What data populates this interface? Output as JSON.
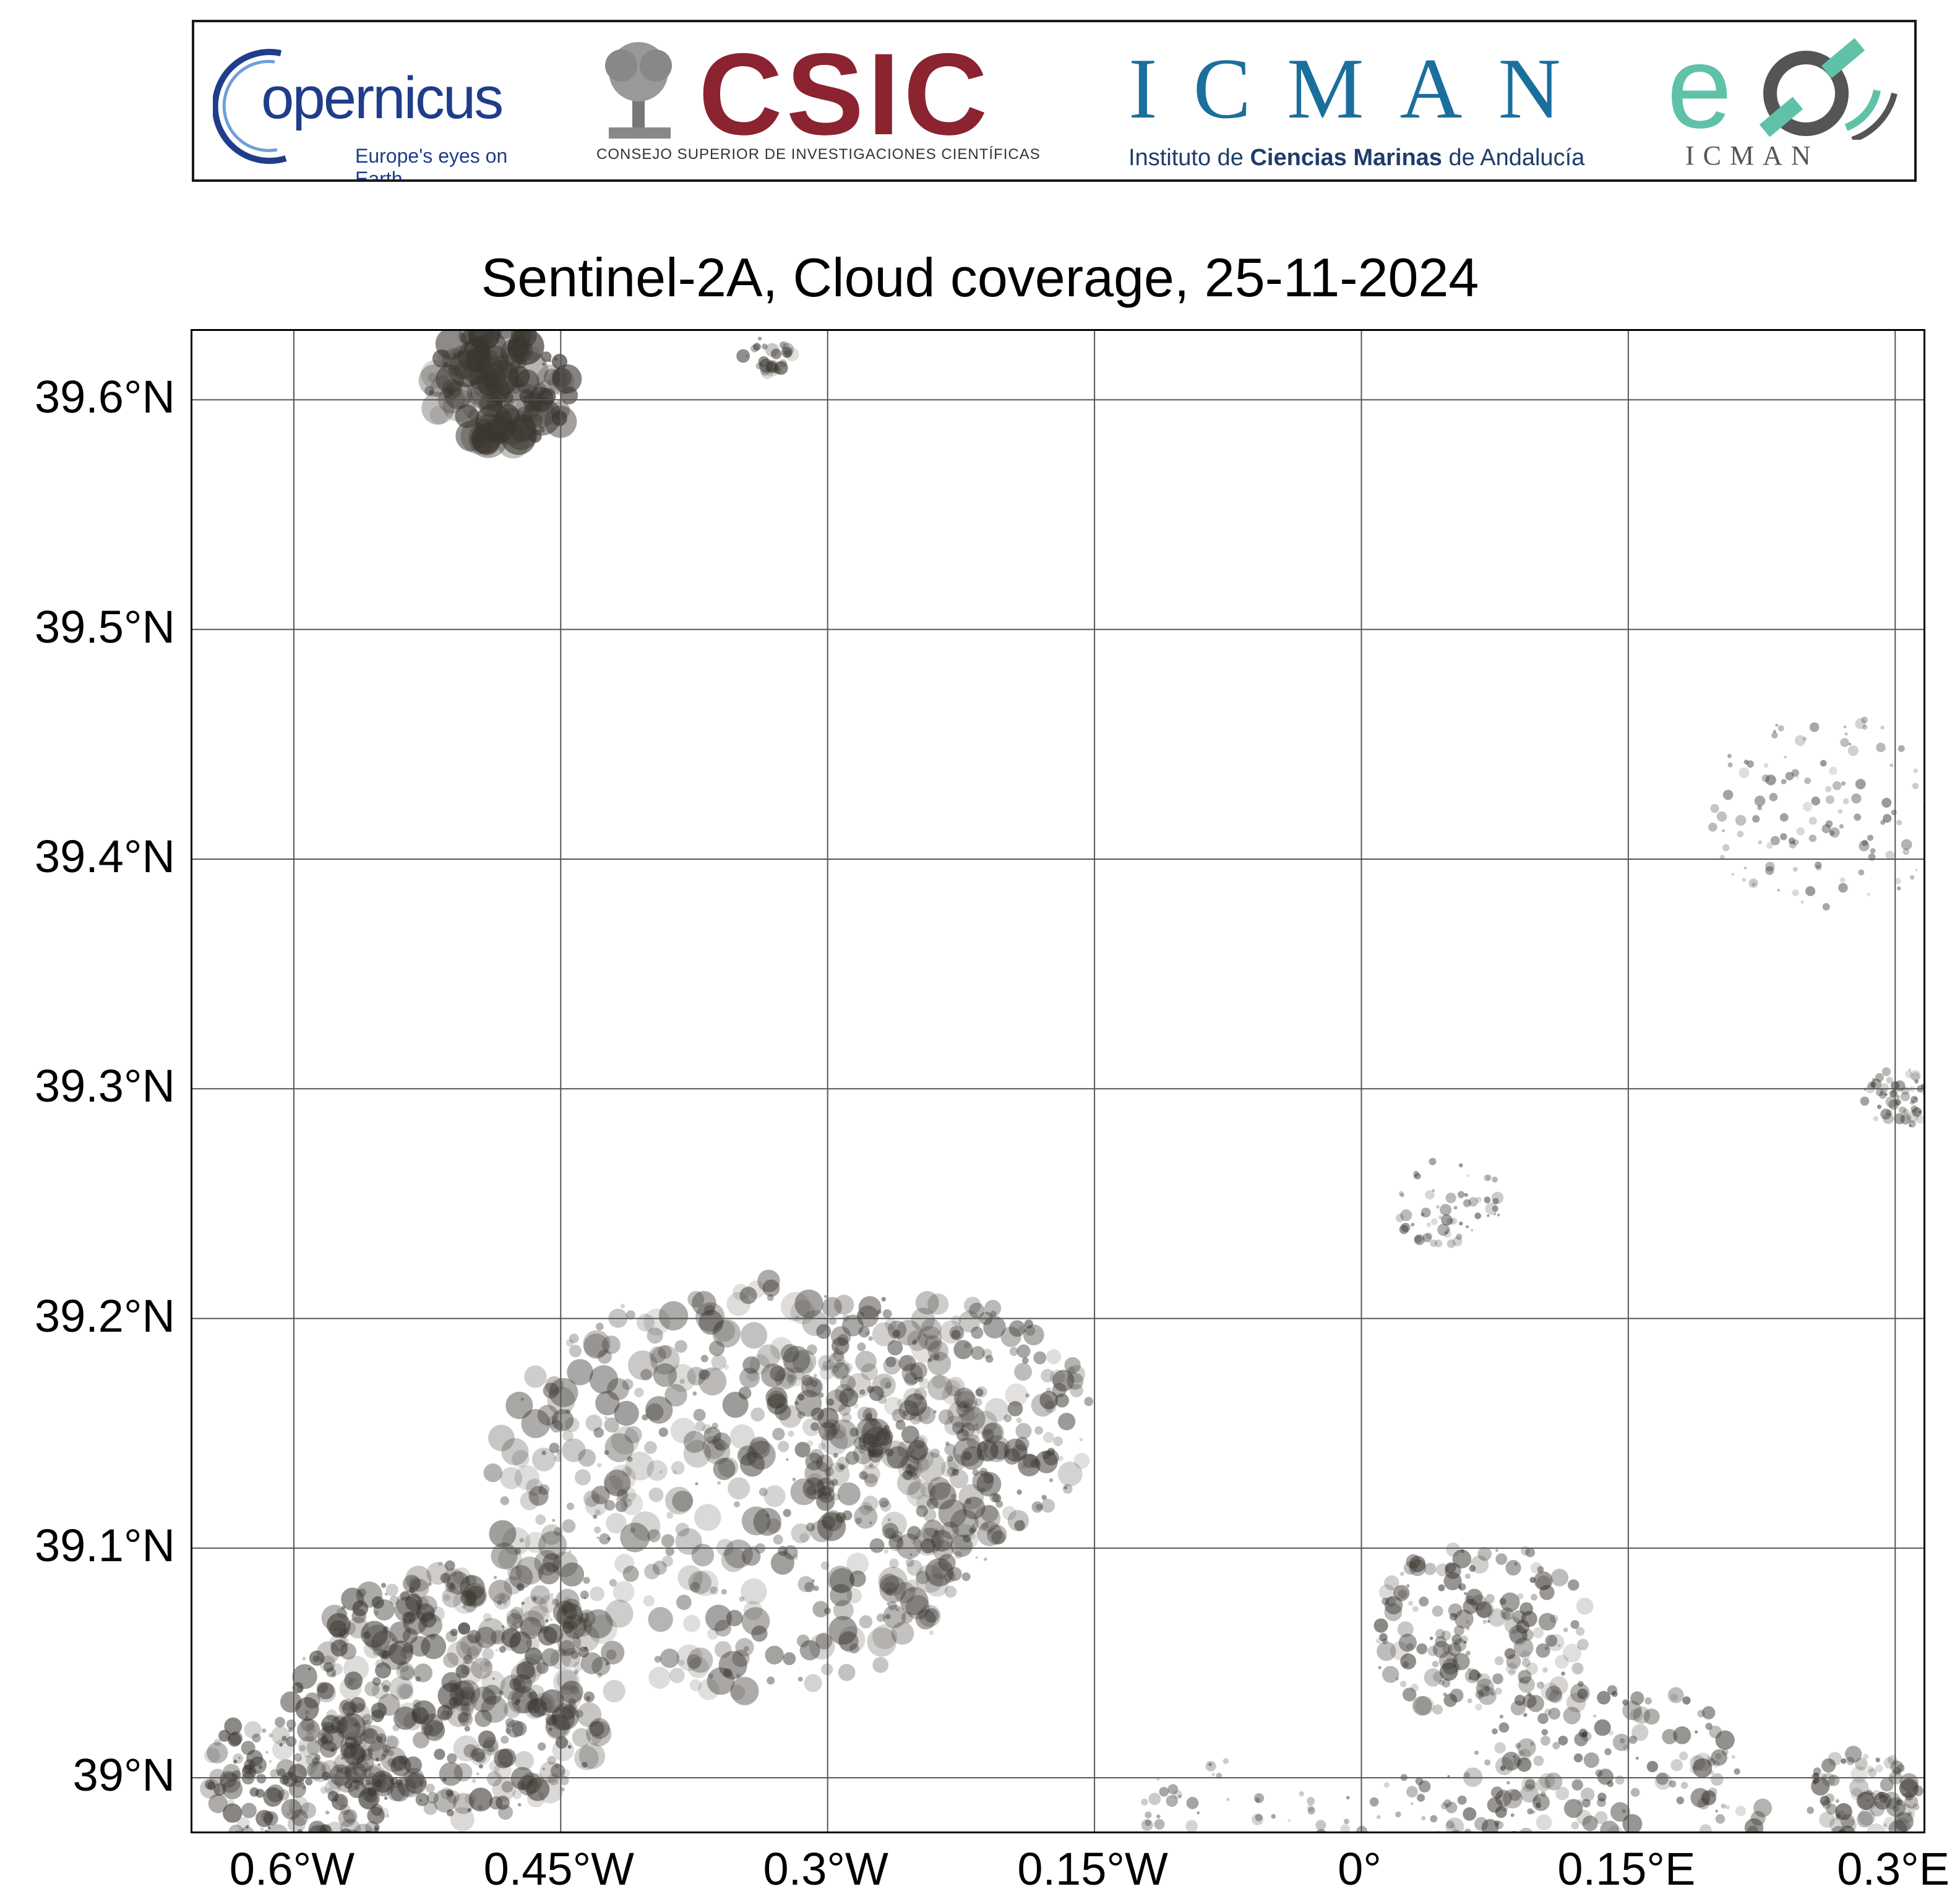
{
  "header": {
    "copernicus": {
      "wordmark": "opernicus",
      "initial": "C",
      "tagline": "Europe's eyes on Earth"
    },
    "csic": {
      "wordmark": "CSIC",
      "subtitle": "Consejo Superior de Investigaciones Científicas"
    },
    "icman": {
      "wordmark": "ICMAN",
      "subtitle_pre": "Instituto de ",
      "subtitle_bold": "Ciencias Marinas",
      "subtitle_post": " de Andalucía"
    },
    "eo_logo": {
      "wordmark": "eo",
      "subtitle": "ICMAN"
    }
  },
  "map": {
    "title": "Sentinel-2A, Cloud coverage, 25-11-2024",
    "lat_ticks": [
      "39.6°N",
      "39.5°N",
      "39.4°N",
      "39.3°N",
      "39.2°N",
      "39.1°N",
      "39°N"
    ],
    "lon_ticks": [
      "0.6°W",
      "0.45°W",
      "0.3°W",
      "0.15°W",
      "0°",
      "0.15°E",
      "0.3°E"
    ],
    "lat_values": [
      39.6,
      39.5,
      39.4,
      39.3,
      39.2,
      39.1,
      39.0
    ],
    "lon_values": [
      -0.6,
      -0.45,
      -0.3,
      -0.15,
      0.0,
      0.15,
      0.3
    ],
    "extent": {
      "lon_min": -0.657,
      "lon_max": 0.318,
      "lat_min": 38.975,
      "lat_max": 39.63
    },
    "background_color": "#ffffff",
    "gridline_color": "#555555",
    "cloud_color": "#3a3630"
  }
}
